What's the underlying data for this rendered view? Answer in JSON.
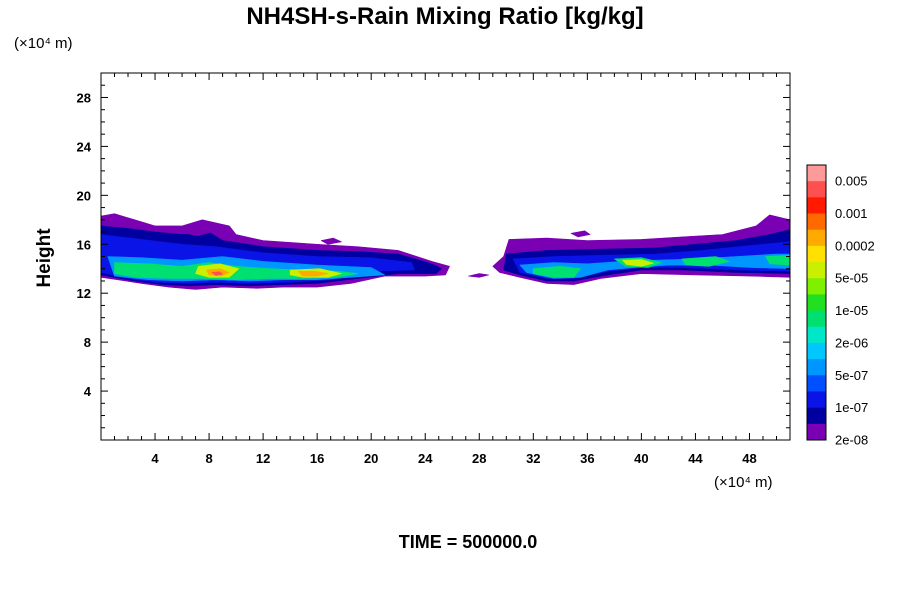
{
  "chart_data": {
    "type": "heatmap",
    "title": "NH4SH-s-Rain Mixing Ratio [kg/kg]",
    "ylabel": "Height",
    "xlabel": "",
    "x_scale_note": "(×10⁴ m)",
    "y_scale_note": "(×10⁴ m)",
    "x_unit": "×10^4 m",
    "y_unit": "×10^4 m",
    "xlim": [
      0,
      51
    ],
    "ylim": [
      0,
      30
    ],
    "x_ticks": [
      4,
      8,
      12,
      16,
      20,
      24,
      28,
      32,
      36,
      40,
      44,
      48
    ],
    "y_ticks": [
      4,
      8,
      12,
      16,
      20,
      24,
      28
    ],
    "colorbar": {
      "labels": [
        "0.005",
        "0.001",
        "0.0002",
        "5e-05",
        "1e-05",
        "2e-06",
        "5e-07",
        "1e-07",
        "2e-08"
      ],
      "colors": [
        "#ff9a9a",
        "#ff5050",
        "#ff1a00",
        "#ff6a00",
        "#ffaa00",
        "#ffe000",
        "#c8f000",
        "#7ef000",
        "#20e020",
        "#00e070",
        "#00e6c8",
        "#00c8ff",
        "#0096ff",
        "#0050ff",
        "#0a14e6",
        "#0000a0",
        "#7a00b4"
      ]
    },
    "regions": [
      {
        "level": 0,
        "color": "#7a00b4",
        "points": [
          [
            0.0,
            18.3
          ],
          [
            1.0,
            18.5
          ],
          [
            2.5,
            18.0
          ],
          [
            4.0,
            17.5
          ],
          [
            6.0,
            17.5
          ],
          [
            7.5,
            18.0
          ],
          [
            9.5,
            17.5
          ],
          [
            10.0,
            16.8
          ],
          [
            12.0,
            16.3
          ],
          [
            16.0,
            16.0
          ],
          [
            19.0,
            15.8
          ],
          [
            22.0,
            15.5
          ],
          [
            24.5,
            14.6
          ],
          [
            25.8,
            14.2
          ],
          [
            25.5,
            13.5
          ],
          [
            24.0,
            13.4
          ],
          [
            21.0,
            13.4
          ],
          [
            18.5,
            12.8
          ],
          [
            16.0,
            12.5
          ],
          [
            13.5,
            12.5
          ],
          [
            11.5,
            12.4
          ],
          [
            9.0,
            12.5
          ],
          [
            7.0,
            12.3
          ],
          [
            5.0,
            12.5
          ],
          [
            3.0,
            12.8
          ],
          [
            0.0,
            13.3
          ]
        ]
      },
      {
        "level": 1,
        "color": "#0000a0",
        "points": [
          [
            0.0,
            17.5
          ],
          [
            2.0,
            17.3
          ],
          [
            4.0,
            17.0
          ],
          [
            6.0,
            16.8
          ],
          [
            8.0,
            17.0
          ],
          [
            9.0,
            16.3
          ],
          [
            12.0,
            15.8
          ],
          [
            16.0,
            15.5
          ],
          [
            19.0,
            15.4
          ],
          [
            22.0,
            15.2
          ],
          [
            24.5,
            14.4
          ],
          [
            25.2,
            14.0
          ],
          [
            24.8,
            13.6
          ],
          [
            22.0,
            13.6
          ],
          [
            19.0,
            13.2
          ],
          [
            16.0,
            12.8
          ],
          [
            13.5,
            12.7
          ],
          [
            11.0,
            12.6
          ],
          [
            8.5,
            12.7
          ],
          [
            6.5,
            12.6
          ],
          [
            4.5,
            12.7
          ],
          [
            2.5,
            13.0
          ],
          [
            0.0,
            13.5
          ]
        ]
      },
      {
        "level": 2,
        "color": "#0a14e6",
        "points": [
          [
            0.0,
            16.8
          ],
          [
            3.0,
            16.4
          ],
          [
            6.0,
            16.0
          ],
          [
            8.5,
            15.8
          ],
          [
            12.0,
            15.3
          ],
          [
            16.0,
            15.0
          ],
          [
            20.0,
            14.9
          ],
          [
            23.0,
            14.5
          ],
          [
            23.2,
            13.9
          ],
          [
            20.0,
            13.8
          ],
          [
            17.0,
            13.1
          ],
          [
            14.0,
            12.9
          ],
          [
            11.0,
            12.8
          ],
          [
            8.5,
            12.9
          ],
          [
            6.5,
            12.8
          ],
          [
            4.0,
            12.9
          ],
          [
            2.0,
            13.2
          ],
          [
            0.0,
            13.7
          ]
        ]
      },
      {
        "level": 4,
        "color": "#0096ff",
        "points": [
          [
            0.5,
            15.0
          ],
          [
            3.0,
            14.9
          ],
          [
            6.0,
            14.7
          ],
          [
            9.0,
            15.0
          ],
          [
            12.0,
            14.6
          ],
          [
            16.0,
            14.3
          ],
          [
            20.0,
            14.1
          ],
          [
            21.0,
            13.5
          ],
          [
            18.5,
            13.3
          ],
          [
            16.0,
            13.1
          ],
          [
            13.5,
            13.1
          ],
          [
            11.0,
            13.0
          ],
          [
            8.5,
            13.1
          ],
          [
            6.0,
            13.0
          ],
          [
            3.5,
            13.1
          ],
          [
            1.0,
            13.4
          ]
        ]
      },
      {
        "level": 6,
        "color": "#00e070",
        "points": [
          [
            1.0,
            14.5
          ],
          [
            3.5,
            14.4
          ],
          [
            6.0,
            14.2
          ],
          [
            8.0,
            14.5
          ],
          [
            10.0,
            14.2
          ],
          [
            12.5,
            14.0
          ],
          [
            15.0,
            13.9
          ],
          [
            17.5,
            13.8
          ],
          [
            19.0,
            13.6
          ],
          [
            17.5,
            13.3
          ],
          [
            15.0,
            13.2
          ],
          [
            12.5,
            13.2
          ],
          [
            10.0,
            13.1
          ],
          [
            7.5,
            13.2
          ],
          [
            5.0,
            13.2
          ],
          [
            2.5,
            13.3
          ],
          [
            1.0,
            13.6
          ]
        ]
      },
      {
        "level": 7,
        "color": "#c8f000",
        "points": [
          [
            7.2,
            14.2
          ],
          [
            8.8,
            14.4
          ],
          [
            10.2,
            14.0
          ],
          [
            9.5,
            13.3
          ],
          [
            8.0,
            13.3
          ],
          [
            7.0,
            13.6
          ]
        ]
      },
      {
        "level": 7,
        "color": "#c8f000",
        "points": [
          [
            14.0,
            13.9
          ],
          [
            16.2,
            14.0
          ],
          [
            17.8,
            13.6
          ],
          [
            16.8,
            13.3
          ],
          [
            15.0,
            13.3
          ],
          [
            14.0,
            13.5
          ]
        ]
      },
      {
        "level": 9,
        "color": "#ffaa00",
        "points": [
          [
            7.8,
            13.9
          ],
          [
            8.8,
            14.0
          ],
          [
            9.5,
            13.7
          ],
          [
            8.9,
            13.4
          ],
          [
            8.0,
            13.5
          ]
        ]
      },
      {
        "level": 9,
        "color": "#ffaa00",
        "points": [
          [
            14.6,
            13.8
          ],
          [
            15.8,
            13.8
          ],
          [
            16.8,
            13.6
          ],
          [
            16.0,
            13.4
          ],
          [
            14.9,
            13.4
          ]
        ]
      },
      {
        "level": 12,
        "color": "#ff5050",
        "points": [
          [
            8.2,
            13.7
          ],
          [
            8.8,
            13.75
          ],
          [
            9.0,
            13.55
          ],
          [
            8.5,
            13.45
          ]
        ]
      },
      {
        "level": 0,
        "color": "#7a00b4",
        "points": [
          [
            27.2,
            13.4
          ],
          [
            28.0,
            13.6
          ],
          [
            28.7,
            13.5
          ],
          [
            28.0,
            13.3
          ]
        ]
      },
      {
        "level": 0,
        "color": "#7a00b4",
        "points": [
          [
            30.2,
            16.4
          ],
          [
            33.0,
            16.5
          ],
          [
            36.0,
            16.3
          ],
          [
            40.0,
            16.4
          ],
          [
            43.0,
            16.6
          ],
          [
            46.0,
            16.8
          ],
          [
            48.5,
            17.5
          ],
          [
            49.5,
            18.4
          ],
          [
            51.0,
            18.0
          ],
          [
            51.0,
            13.3
          ],
          [
            48.0,
            13.4
          ],
          [
            44.0,
            13.5
          ],
          [
            40.0,
            13.6
          ],
          [
            37.0,
            13.2
          ],
          [
            35.0,
            12.7
          ],
          [
            33.0,
            12.8
          ],
          [
            31.0,
            13.3
          ],
          [
            29.5,
            13.7
          ],
          [
            29.0,
            14.2
          ],
          [
            29.8,
            15.0
          ]
        ]
      },
      {
        "level": 1,
        "color": "#0000a0",
        "points": [
          [
            30.0,
            15.2
          ],
          [
            33.0,
            15.5
          ],
          [
            37.0,
            15.6
          ],
          [
            41.0,
            15.7
          ],
          [
            44.0,
            16.0
          ],
          [
            47.0,
            16.3
          ],
          [
            49.5,
            16.8
          ],
          [
            51.0,
            17.2
          ],
          [
            51.0,
            13.6
          ],
          [
            47.0,
            13.7
          ],
          [
            43.0,
            13.9
          ],
          [
            40.0,
            13.9
          ],
          [
            37.5,
            13.5
          ],
          [
            35.0,
            13.0
          ],
          [
            33.0,
            13.0
          ],
          [
            31.0,
            13.5
          ],
          [
            29.8,
            13.9
          ]
        ]
      },
      {
        "level": 2,
        "color": "#0a14e6",
        "points": [
          [
            30.5,
            14.8
          ],
          [
            33.5,
            15.0
          ],
          [
            37.0,
            15.1
          ],
          [
            41.0,
            15.2
          ],
          [
            44.5,
            15.5
          ],
          [
            48.0,
            15.9
          ],
          [
            51.0,
            16.2
          ],
          [
            51.0,
            13.8
          ],
          [
            47.0,
            13.9
          ],
          [
            43.0,
            14.1
          ],
          [
            40.0,
            14.1
          ],
          [
            37.5,
            13.8
          ],
          [
            35.0,
            13.2
          ],
          [
            33.0,
            13.2
          ],
          [
            31.0,
            13.7
          ]
        ]
      },
      {
        "level": 4,
        "color": "#0096ff",
        "points": [
          [
            31.0,
            14.3
          ],
          [
            33.5,
            14.5
          ],
          [
            36.0,
            14.4
          ],
          [
            38.5,
            14.6
          ],
          [
            41.0,
            14.7
          ],
          [
            44.0,
            14.8
          ],
          [
            47.0,
            15.0
          ],
          [
            50.0,
            15.2
          ],
          [
            51.0,
            15.2
          ],
          [
            51.0,
            14.0
          ],
          [
            48.0,
            14.1
          ],
          [
            45.0,
            14.3
          ],
          [
            42.0,
            14.3
          ],
          [
            39.5,
            14.1
          ],
          [
            37.5,
            13.9
          ],
          [
            35.5,
            13.3
          ],
          [
            33.5,
            13.2
          ],
          [
            31.5,
            13.7
          ]
        ]
      },
      {
        "level": 6,
        "color": "#00e070",
        "points": [
          [
            32.0,
            14.0
          ],
          [
            34.0,
            14.2
          ],
          [
            35.5,
            14.0
          ],
          [
            35.0,
            13.3
          ],
          [
            33.5,
            13.3
          ],
          [
            32.0,
            13.6
          ]
        ]
      },
      {
        "level": 6,
        "color": "#00e070",
        "points": [
          [
            38.0,
            14.8
          ],
          [
            40.0,
            14.9
          ],
          [
            41.5,
            14.5
          ],
          [
            40.5,
            14.1
          ],
          [
            38.8,
            14.2
          ]
        ]
      },
      {
        "level": 6,
        "color": "#00e070",
        "points": [
          [
            43.0,
            14.8
          ],
          [
            45.5,
            15.0
          ],
          [
            46.5,
            14.6
          ],
          [
            45.0,
            14.2
          ],
          [
            43.3,
            14.3
          ]
        ]
      },
      {
        "level": 6,
        "color": "#00e070",
        "points": [
          [
            49.2,
            15.0
          ],
          [
            51.0,
            15.1
          ],
          [
            51.0,
            14.3
          ],
          [
            49.5,
            14.4
          ]
        ]
      },
      {
        "level": 7,
        "color": "#c8f000",
        "points": [
          [
            38.6,
            14.7
          ],
          [
            40.0,
            14.75
          ],
          [
            40.9,
            14.45
          ],
          [
            40.0,
            14.2
          ],
          [
            38.9,
            14.35
          ]
        ]
      },
      {
        "level": 0,
        "color": "#7a00b4",
        "points": [
          [
            6.2,
            16.9
          ],
          [
            7.5,
            17.2
          ],
          [
            8.2,
            17.0
          ],
          [
            7.2,
            16.7
          ]
        ]
      },
      {
        "level": 0,
        "color": "#7a00b4",
        "points": [
          [
            16.3,
            16.3
          ],
          [
            17.2,
            16.5
          ],
          [
            17.8,
            16.2
          ],
          [
            16.8,
            16.0
          ]
        ]
      },
      {
        "level": 0,
        "color": "#7a00b4",
        "points": [
          [
            34.8,
            16.9
          ],
          [
            35.8,
            17.1
          ],
          [
            36.2,
            16.8
          ],
          [
            35.3,
            16.6
          ]
        ]
      }
    ],
    "series": []
  },
  "time_label": "TIME = 500000.0"
}
